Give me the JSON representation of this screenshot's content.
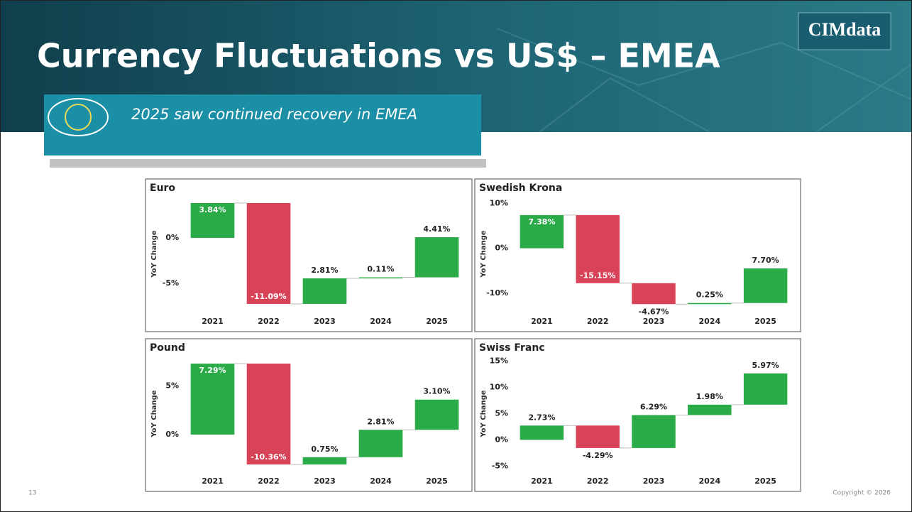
{
  "header": {
    "title": "Currency Fluctuations vs US$ – EMEA",
    "subtitle": "2025 saw continued recovery in EMEA",
    "logo": "CIMdata"
  },
  "footer": {
    "page": "13",
    "copyright": "Copyright © 2026"
  },
  "chart_data": [
    {
      "type": "waterfall",
      "title": "Euro",
      "y_label": "YoY Change",
      "categories": [
        "2021",
        "2022",
        "2023",
        "2024",
        "2025"
      ],
      "values": [
        3.84,
        -11.09,
        2.81,
        0.11,
        4.41
      ],
      "value_labels": [
        "3.84%",
        "-11.09%",
        "2.81%",
        "0.11%",
        "4.41%"
      ],
      "ylim": [
        -7.8,
        4.3
      ],
      "yticks": [
        {
          "value": -5,
          "label": "-5%"
        },
        {
          "value": 0,
          "label": "0%"
        }
      ],
      "colors": {
        "increase": "#2aab48",
        "decrease": "#d94357"
      }
    },
    {
      "type": "waterfall",
      "title": "Swedish Krona",
      "y_label": "YoY Change",
      "categories": [
        "2021",
        "2022",
        "2023",
        "2024",
        "2025"
      ],
      "values": [
        7.38,
        -15.15,
        -4.67,
        0.25,
        7.7
      ],
      "value_labels": [
        "7.38%",
        "-15.15%",
        "-4.67%",
        "0.25%",
        "7.70%"
      ],
      "ylim": [
        -13.5,
        11
      ],
      "yticks": [
        {
          "value": -10,
          "label": "-10%"
        },
        {
          "value": 0,
          "label": "0%"
        },
        {
          "value": 10,
          "label": "10%"
        }
      ],
      "colors": {
        "increase": "#2aab48",
        "decrease": "#d94357"
      }
    },
    {
      "type": "waterfall",
      "title": "Pound",
      "y_label": "YoY Change",
      "categories": [
        "2021",
        "2022",
        "2023",
        "2024",
        "2025"
      ],
      "values": [
        7.29,
        -10.36,
        0.75,
        2.81,
        3.1
      ],
      "value_labels": [
        "7.29%",
        "-10.36%",
        "0.75%",
        "2.81%",
        "3.10%"
      ],
      "ylim": [
        -3.5,
        7.8
      ],
      "yticks": [
        {
          "value": 0,
          "label": "0%"
        },
        {
          "value": 5,
          "label": "5%"
        }
      ],
      "colors": {
        "increase": "#2aab48",
        "decrease": "#d94357"
      }
    },
    {
      "type": "waterfall",
      "title": "Swiss Franc",
      "y_label": "YoY Change",
      "categories": [
        "2021",
        "2022",
        "2023",
        "2024",
        "2025"
      ],
      "values": [
        2.73,
        -4.29,
        6.29,
        1.98,
        5.97
      ],
      "value_labels": [
        "2.73%",
        "-4.29%",
        "6.29%",
        "1.98%",
        "5.97%"
      ],
      "ylim": [
        -5.5,
        15.5
      ],
      "yticks": [
        {
          "value": -5,
          "label": "-5%"
        },
        {
          "value": 0,
          "label": "0%"
        },
        {
          "value": 5,
          "label": "5%"
        },
        {
          "value": 10,
          "label": "10%"
        },
        {
          "value": 15,
          "label": "15%"
        }
      ],
      "colors": {
        "increase": "#2aab48",
        "decrease": "#d94357"
      }
    }
  ]
}
